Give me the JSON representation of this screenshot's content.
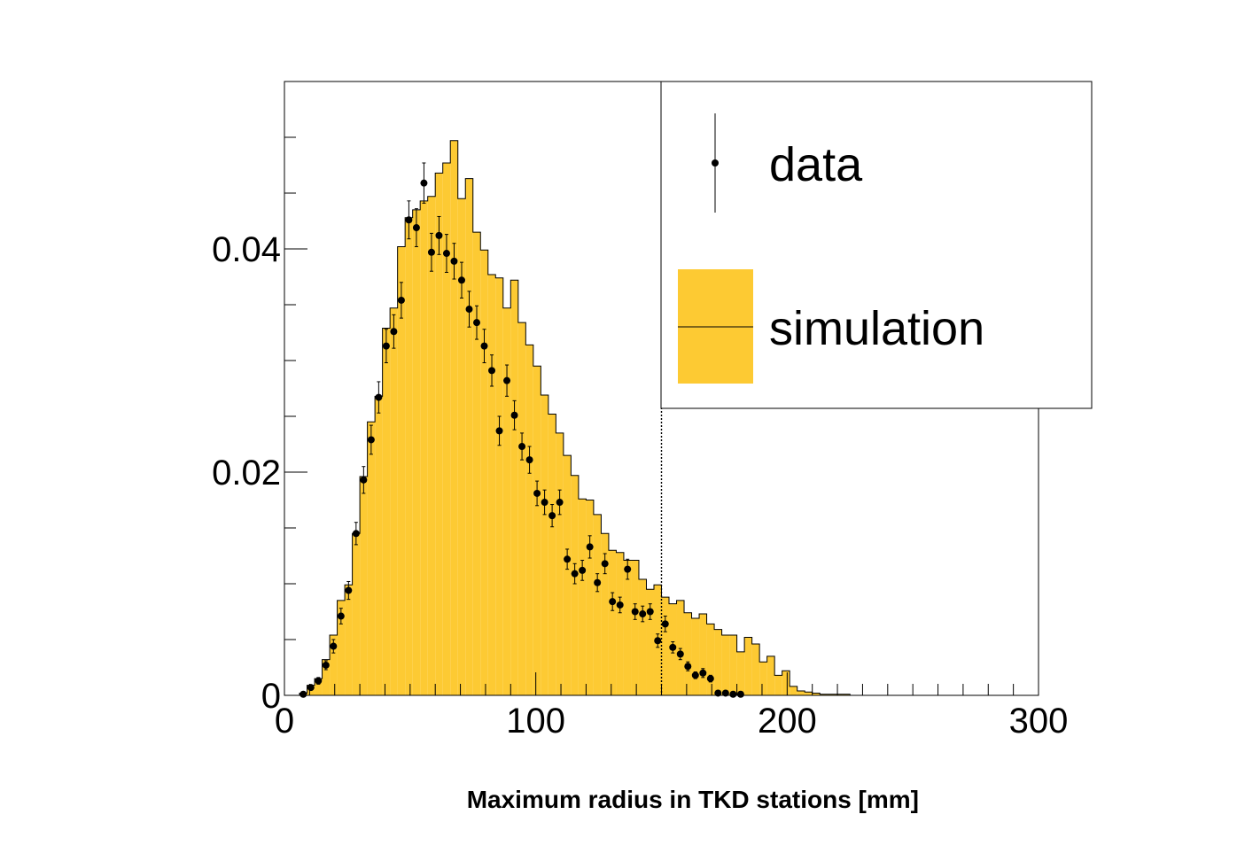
{
  "chart_data": {
    "type": "bar",
    "title": "",
    "xlabel": "Maximum radius in TKD stations [mm]",
    "ylabel": "",
    "xlim": [
      0,
      300
    ],
    "ylim": [
      0,
      0.055
    ],
    "x_ticks": [
      "0",
      "100",
      "200",
      "300"
    ],
    "y_ticks": [
      "0",
      "0.02",
      "0.04"
    ],
    "bin_width": 3,
    "cut_line_x": 150,
    "legend": {
      "position": "top-right",
      "entries": [
        "data",
        "simulation"
      ]
    },
    "colors": {
      "simulation_fill": "#fdca33",
      "line": "#000000",
      "marker": "#000000"
    },
    "series": [
      {
        "name": "simulation",
        "style": "filled-histogram",
        "bin_start": 6,
        "values": [
          0.0002,
          0.0009,
          0.0015,
          0.0032,
          0.0054,
          0.0085,
          0.0099,
          0.0145,
          0.0196,
          0.0245,
          0.0268,
          0.0329,
          0.0347,
          0.0402,
          0.0428,
          0.0435,
          0.0443,
          0.0447,
          0.0468,
          0.0477,
          0.0497,
          0.0445,
          0.0463,
          0.0415,
          0.0399,
          0.0377,
          0.0374,
          0.0347,
          0.0372,
          0.0334,
          0.0314,
          0.0295,
          0.0269,
          0.0252,
          0.0235,
          0.0215,
          0.0197,
          0.0176,
          0.0175,
          0.0162,
          0.0145,
          0.013,
          0.0128,
          0.0121,
          0.0121,
          0.0104,
          0.0095,
          0.0099,
          0.0088,
          0.0082,
          0.0085,
          0.0074,
          0.0069,
          0.0073,
          0.0064,
          0.0059,
          0.0054,
          0.0054,
          0.0039,
          0.0052,
          0.0046,
          0.003,
          0.0035,
          0.0018,
          0.0022,
          0.0008,
          0.0004,
          0.0003,
          0.0002,
          0.0001,
          0.0001,
          0.0001,
          0.0001,
          0.0,
          0.0,
          0.0,
          0.0,
          0.0,
          0.0,
          0.0,
          0.0,
          0.0,
          0.0,
          0.0,
          0.0,
          0.0,
          0.0,
          0.0,
          0.0,
          0.0,
          0.0,
          0.0,
          0.0,
          0.0,
          0.0,
          0.0,
          0.0,
          0.0
        ]
      },
      {
        "name": "data",
        "style": "points-with-error-bars",
        "x": [
          7.5,
          10.5,
          13.5,
          16.5,
          19.5,
          22.5,
          25.5,
          28.5,
          31.5,
          34.5,
          37.5,
          40.5,
          43.5,
          46.5,
          49.5,
          52.5,
          55.5,
          58.5,
          61.5,
          64.5,
          67.5,
          70.5,
          73.5,
          76.5,
          79.5,
          82.5,
          85.5,
          88.5,
          91.5,
          94.5,
          97.5,
          100.5,
          103.5,
          106.5,
          109.5,
          112.5,
          115.5,
          118.5,
          121.5,
          124.5,
          127.5,
          130.5,
          133.5,
          136.5,
          139.5,
          142.5,
          145.5,
          148.5,
          151.5,
          154.5,
          157.5,
          160.5,
          163.5,
          166.5,
          169.5,
          172.5,
          175.5,
          178.5,
          181.5
        ],
        "y": [
          0.0001,
          0.0007,
          0.0013,
          0.0027,
          0.0044,
          0.0071,
          0.0094,
          0.0145,
          0.0193,
          0.0229,
          0.0267,
          0.0313,
          0.0326,
          0.0354,
          0.0426,
          0.0419,
          0.0459,
          0.0397,
          0.0412,
          0.0396,
          0.0389,
          0.0372,
          0.0346,
          0.0334,
          0.0313,
          0.0291,
          0.0237,
          0.0282,
          0.0251,
          0.0223,
          0.0211,
          0.0181,
          0.0173,
          0.0161,
          0.0173,
          0.0122,
          0.0109,
          0.0112,
          0.0133,
          0.0101,
          0.0118,
          0.0084,
          0.0081,
          0.0113,
          0.0075,
          0.0073,
          0.0075,
          0.0049,
          0.0064,
          0.0043,
          0.0037,
          0.0026,
          0.0018,
          0.002,
          0.0015,
          0.0002,
          0.0002,
          0.0001,
          0.0001
        ],
        "err": [
          0.0001,
          0.0002,
          0.0003,
          0.0004,
          0.0006,
          0.0007,
          0.0008,
          0.001,
          0.0012,
          0.0013,
          0.0014,
          0.0015,
          0.0015,
          0.0016,
          0.0017,
          0.0017,
          0.0018,
          0.0017,
          0.0017,
          0.0017,
          0.0016,
          0.0016,
          0.0016,
          0.0015,
          0.0015,
          0.0014,
          0.0013,
          0.0014,
          0.0013,
          0.0012,
          0.0012,
          0.0011,
          0.0011,
          0.001,
          0.0011,
          0.0009,
          0.0009,
          0.0009,
          0.001,
          0.0008,
          0.0009,
          0.0008,
          0.0007,
          0.0009,
          0.0007,
          0.0007,
          0.0007,
          0.0006,
          0.0007,
          0.0005,
          0.0005,
          0.0004,
          0.0003,
          0.0004,
          0.0003,
          0.0001,
          0.0001,
          0.0001,
          0.0001
        ]
      }
    ]
  }
}
